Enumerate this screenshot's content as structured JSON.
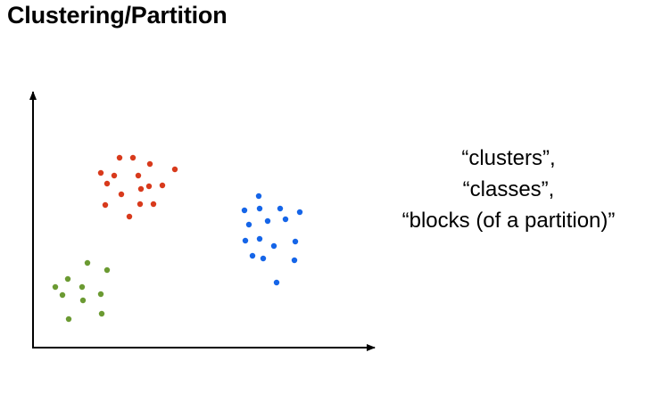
{
  "title": "Clustering/Partition",
  "labels": [
    "“clusters”,",
    "“classes”,",
    "“blocks (of a partition)”"
  ],
  "colors": {
    "red": "#d83a1c",
    "blue": "#1565e8",
    "green": "#6b9a32",
    "axis": "#000000"
  },
  "chart_data": {
    "type": "scatter",
    "grid": false,
    "series": [
      {
        "color": "red",
        "points": [
          [
            134,
            177
          ],
          [
            149,
            177
          ],
          [
            113,
            194
          ],
          [
            168,
            184
          ],
          [
            196,
            190
          ],
          [
            128,
            197
          ],
          [
            155,
            197
          ],
          [
            120,
            206
          ],
          [
            167,
            209
          ],
          [
            182,
            208
          ],
          [
            136,
            218
          ],
          [
            158,
            212
          ],
          [
            118,
            230
          ],
          [
            157,
            229
          ],
          [
            172,
            229
          ],
          [
            145,
            243
          ]
        ]
      },
      {
        "color": "blue",
        "points": [
          [
            290,
            220
          ],
          [
            274,
            236
          ],
          [
            291,
            234
          ],
          [
            314,
            234
          ],
          [
            336,
            238
          ],
          [
            279,
            252
          ],
          [
            300,
            248
          ],
          [
            320,
            246
          ],
          [
            275,
            270
          ],
          [
            291,
            268
          ],
          [
            307,
            276
          ],
          [
            331,
            271
          ],
          [
            283,
            287
          ],
          [
            295,
            290
          ],
          [
            330,
            292
          ],
          [
            310,
            317
          ]
        ]
      },
      {
        "color": "green",
        "points": [
          [
            98,
            295
          ],
          [
            120,
            303
          ],
          [
            76,
            313
          ],
          [
            62,
            322
          ],
          [
            92,
            322
          ],
          [
            113,
            330
          ],
          [
            70,
            331
          ],
          [
            93,
            337
          ],
          [
            114,
            352
          ],
          [
            77,
            358
          ]
        ]
      }
    ]
  }
}
